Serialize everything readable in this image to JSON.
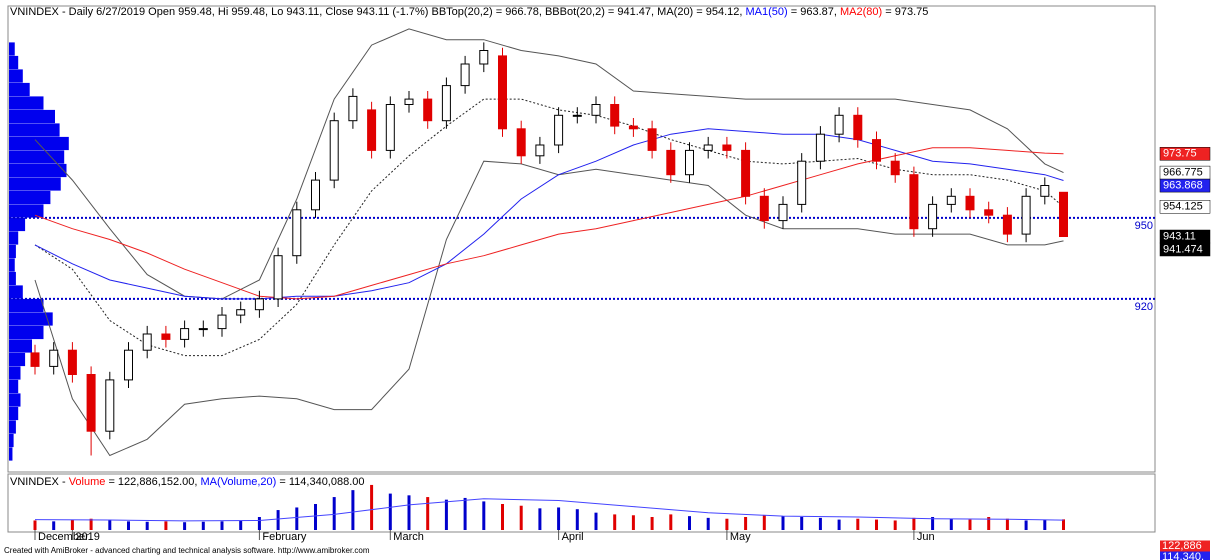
{
  "chart_data": {
    "type": "candlestick",
    "title_parts": [
      "VNINDEX - Daily 6/27/2019 Open 959.48, Hi 959.48, Lo 943.11, Close 943.11 (-1.7%) BBTop(20,2) = 966.78, BBBot(20,2) = 941.47, MA(20) = 954.12, ",
      "MA1(50)",
      " = 963.87, ",
      "MA2(80)",
      " = 973.75"
    ],
    "title_colors": [
      "#000000",
      "#0000ff",
      "#000000",
      "#ff0000",
      "#000000"
    ],
    "categories": [
      "December",
      null,
      "2019",
      null,
      null,
      null,
      null,
      null,
      null,
      null,
      null,
      null,
      "February",
      null,
      null,
      null,
      null,
      null,
      null,
      "March",
      null,
      null,
      null,
      null,
      null,
      null,
      null,
      null,
      "April",
      null,
      null,
      null,
      null,
      null,
      null,
      null,
      null,
      "May",
      null,
      null,
      null,
      null,
      null,
      null,
      null,
      null,
      null,
      "Jun",
      null,
      null,
      null,
      null,
      null,
      null,
      null,
      null
    ],
    "open": [
      900,
      895,
      901,
      892,
      871,
      890,
      901,
      907,
      905,
      909,
      909,
      914,
      916,
      920,
      936,
      953,
      964,
      986,
      990,
      975,
      992,
      994,
      986,
      999,
      1007,
      1010,
      983,
      973,
      977,
      988,
      988,
      992,
      984,
      983,
      975,
      966,
      975,
      977,
      975,
      958,
      949,
      955,
      971,
      981,
      988,
      979,
      971,
      966,
      946,
      955,
      958,
      953,
      951,
      944,
      958,
      959.48
    ],
    "high": [
      903,
      904,
      904,
      895,
      893,
      904,
      910,
      910,
      912,
      912,
      917,
      919,
      923,
      939,
      956,
      967,
      989,
      998,
      993,
      995,
      997,
      997,
      1002,
      1010,
      1015,
      1013,
      986,
      980,
      991,
      991,
      995,
      995,
      987,
      986,
      978,
      978,
      980,
      980,
      978,
      961,
      958,
      974,
      984,
      991,
      991,
      982,
      974,
      969,
      958,
      961,
      961,
      956,
      954,
      961,
      965,
      959.48
    ],
    "low": [
      892,
      892,
      889,
      862,
      868,
      887,
      898,
      902,
      902,
      906,
      906,
      911,
      913,
      917,
      933,
      950,
      961,
      983,
      972,
      972,
      989,
      983,
      983,
      996,
      1004,
      980,
      970,
      970,
      974,
      985,
      985,
      981,
      980,
      972,
      963,
      963,
      972,
      972,
      955,
      946,
      946,
      952,
      968,
      978,
      976,
      968,
      963,
      943,
      943,
      952,
      950,
      948,
      941,
      941,
      955,
      943.11
    ],
    "close": [
      895,
      901,
      892,
      871,
      890,
      901,
      907,
      905,
      909,
      909,
      914,
      916,
      920,
      936,
      953,
      964,
      986,
      995,
      975,
      992,
      994,
      986,
      999,
      1007,
      1012,
      983,
      973,
      977,
      988,
      988,
      992,
      984,
      983,
      975,
      966,
      975,
      977,
      975,
      958,
      949,
      955,
      971,
      981,
      988,
      979,
      971,
      966,
      946,
      955,
      958,
      953,
      951,
      944,
      958,
      962,
      943.11
    ],
    "close_label": "943.11",
    "up_color": "#ffffff",
    "down_color": "#e00000",
    "wick_color": "#000000",
    "ylim": [
      857,
      1027
    ],
    "yticks": [
      920,
      950
    ],
    "grid": true,
    "grid_color": "#0000cc",
    "lines": [
      {
        "color": "#555555",
        "dash": false,
        "tag_fill": "#ffffff",
        "tag_text": "#000000",
        "last_label": "966.775",
        "x": [
          0,
          2,
          4,
          6,
          8,
          10,
          12,
          14,
          16,
          18,
          20,
          22,
          24,
          26,
          28,
          30,
          32,
          34,
          36,
          38,
          40,
          42,
          44,
          46,
          48,
          50,
          52,
          54,
          55
        ],
        "values": [
          979,
          964,
          946,
          929,
          921,
          920,
          927,
          957,
          994,
          1014,
          1020,
          1016,
          1016,
          1012,
          1010,
          1007,
          997,
          996,
          995,
          994,
          994,
          994,
          994,
          994,
          992,
          990,
          983,
          970,
          966.775
        ]
      },
      {
        "color": "#555555",
        "dash": false,
        "tag_fill": "#000000",
        "tag_text": "#ffffff",
        "last_label": "941.474",
        "x": [
          0,
          2,
          4,
          6,
          8,
          10,
          12,
          14,
          16,
          18,
          20,
          22,
          24,
          26,
          28,
          30,
          32,
          34,
          36,
          38,
          40,
          42,
          44,
          46,
          48,
          50,
          52,
          54,
          55
        ],
        "values": [
          927,
          883,
          862,
          868,
          881,
          883,
          884,
          883,
          879,
          879,
          894,
          942,
          971,
          970,
          966,
          968,
          966,
          964,
          962,
          951,
          946,
          946,
          946,
          944,
          944,
          944,
          940,
          940,
          941.474
        ]
      },
      {
        "color": "#222222",
        "dash": true,
        "tag_fill": "#ffffff",
        "tag_text": "#000000",
        "last_label": "954.125",
        "x": [
          0,
          2,
          4,
          6,
          8,
          10,
          12,
          14,
          16,
          18,
          20,
          22,
          24,
          26,
          28,
          30,
          32,
          34,
          36,
          38,
          40,
          42,
          44,
          46,
          48,
          50,
          52,
          54,
          55
        ],
        "values": [
          940,
          931,
          912,
          903,
          899,
          899,
          905,
          918,
          940,
          960,
          973,
          984,
          994,
          994,
          990,
          988,
          984,
          979,
          975,
          971,
          970,
          971,
          972,
          968,
          966,
          966,
          964,
          960,
          954.125
        ]
      },
      {
        "color": "#2222ee",
        "dash": false,
        "tag_fill": "#2222ee",
        "tag_text": "#ffffff",
        "last_label": "963.868",
        "x": [
          0,
          2,
          4,
          6,
          8,
          10,
          12,
          14,
          16,
          18,
          20,
          22,
          24,
          26,
          28,
          30,
          32,
          34,
          36,
          38,
          40,
          42,
          44,
          46,
          48,
          50,
          52,
          54,
          55
        ],
        "values": [
          940,
          933,
          927,
          924,
          921,
          920,
          920,
          921,
          921,
          923,
          926,
          933,
          944,
          957,
          966,
          971,
          977,
          981,
          983,
          982,
          981,
          981,
          979,
          975,
          971,
          970,
          968,
          966,
          963.868
        ]
      },
      {
        "color": "#ee2222",
        "dash": false,
        "tag_fill": "#ee2222",
        "tag_text": "#ffffff",
        "last_label": "973.75",
        "x": [
          0,
          2,
          4,
          6,
          8,
          10,
          12,
          14,
          16,
          18,
          20,
          22,
          24,
          26,
          28,
          30,
          32,
          34,
          36,
          38,
          40,
          42,
          44,
          46,
          48,
          50,
          52,
          54,
          55
        ],
        "values": [
          951,
          946,
          942,
          937,
          931,
          926,
          921,
          920,
          921,
          925,
          929,
          933,
          936,
          940,
          944,
          946,
          949,
          952,
          955,
          958,
          962,
          966,
          970,
          973,
          976,
          976,
          975,
          974,
          973.75
        ]
      }
    ],
    "volume_profile": {
      "color": "#0000ee",
      "bins": [
        860,
        865,
        870,
        875,
        880,
        885,
        890,
        895,
        900,
        905,
        910,
        915,
        920,
        925,
        930,
        935,
        940,
        945,
        950,
        955,
        960,
        965,
        970,
        975,
        980,
        985,
        990,
        995,
        1000,
        1005,
        1010,
        1015
      ],
      "counts": [
        3,
        4,
        6,
        8,
        10,
        8,
        10,
        14,
        20,
        30,
        38,
        30,
        12,
        6,
        5,
        6,
        8,
        14,
        30,
        36,
        45,
        50,
        48,
        52,
        44,
        40,
        30,
        18,
        12,
        8,
        5
      ]
    },
    "volume": {
      "title_parts": [
        "VNINDEX - ",
        "Volume",
        " = 122,886,152.00, ",
        "MA(Volume,20)",
        " = 114,340,088.00"
      ],
      "title_colors": [
        "#000000",
        "#ff0000",
        "#000000",
        "#0000ff",
        "#000000"
      ],
      "ylim": [
        0,
        600000000
      ],
      "up_color": "#0000cc",
      "down_color": "#e00000",
      "values": [
        110000000,
        100000000,
        120000000,
        130000000,
        110000000,
        100000000,
        95000000,
        100000000,
        90000000,
        95000000,
        100000000,
        110000000,
        150000000,
        230000000,
        260000000,
        300000000,
        380000000,
        460000000,
        520000000,
        420000000,
        400000000,
        380000000,
        350000000,
        370000000,
        330000000,
        300000000,
        280000000,
        250000000,
        260000000,
        240000000,
        200000000,
        180000000,
        170000000,
        150000000,
        180000000,
        160000000,
        140000000,
        130000000,
        150000000,
        170000000,
        160000000,
        150000000,
        140000000,
        120000000,
        130000000,
        120000000,
        110000000,
        140000000,
        150000000,
        130000000,
        120000000,
        150000000,
        130000000,
        110000000,
        120000000,
        122886152
      ],
      "ma": {
        "color": "#4444ff",
        "x": [
          0,
          4,
          8,
          12,
          16,
          20,
          24,
          28,
          32,
          36,
          40,
          44,
          48,
          52,
          55
        ],
        "values": [
          120000000,
          115000000,
          105000000,
          110000000,
          180000000,
          290000000,
          360000000,
          340000000,
          270000000,
          200000000,
          160000000,
          150000000,
          130000000,
          125000000,
          114340088
        ]
      },
      "right_tags": [
        "122,886",
        "114,340,"
      ],
      "right_tag_colors": [
        "#ee2222",
        "#2222ee"
      ]
    },
    "footer": "Created with AmiBroker - advanced charting and technical analysis software. http://www.amibroker.com"
  }
}
